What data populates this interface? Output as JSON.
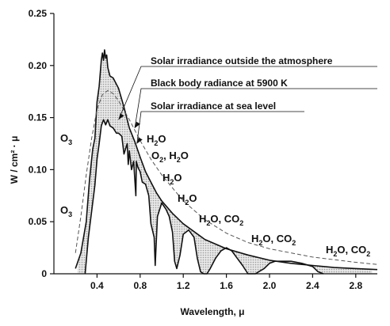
{
  "chart_data": {
    "type": "line",
    "title": "",
    "xlabel": "Wavelength, μ",
    "ylabel": "W / cm² · μ",
    "xlim": [
      0,
      3.0
    ],
    "ylim": [
      0,
      0.25
    ],
    "xticks": [
      0.4,
      0.8,
      1.2,
      1.6,
      2.0,
      2.4,
      2.8
    ],
    "xtick_labels": [
      "0.4",
      "0.8",
      "1.2",
      "1.6",
      "2.0",
      "2.4",
      "2.8"
    ],
    "yticks": [
      0,
      0.05,
      0.1,
      0.15,
      0.2,
      0.25
    ],
    "ytick_labels": [
      "0",
      "0.05",
      "0.10",
      "0.15",
      "0.20",
      "0.25"
    ],
    "grid": false,
    "legend_position": "top-right",
    "series": [
      {
        "name": "Solar irradiance outside the atmosphere",
        "style": "solid",
        "x": [
          0.2,
          0.25,
          0.3,
          0.33,
          0.36,
          0.38,
          0.4,
          0.42,
          0.44,
          0.45,
          0.46,
          0.47,
          0.48,
          0.49,
          0.5,
          0.52,
          0.55,
          0.6,
          0.65,
          0.7,
          0.75,
          0.8,
          0.85,
          0.9,
          0.95,
          1.0,
          1.1,
          1.2,
          1.4,
          1.6,
          1.8,
          2.0,
          2.2,
          2.4,
          2.6,
          2.8,
          3.0
        ],
        "y": [
          0.005,
          0.02,
          0.05,
          0.09,
          0.12,
          0.13,
          0.165,
          0.18,
          0.205,
          0.212,
          0.205,
          0.215,
          0.207,
          0.21,
          0.198,
          0.19,
          0.188,
          0.178,
          0.16,
          0.14,
          0.127,
          0.112,
          0.098,
          0.088,
          0.078,
          0.07,
          0.058,
          0.048,
          0.033,
          0.024,
          0.018,
          0.013,
          0.01,
          0.008,
          0.006,
          0.005,
          0.004
        ]
      },
      {
        "name": "Black body radiance at 5900 K",
        "style": "dashed",
        "x": [
          0.2,
          0.25,
          0.3,
          0.35,
          0.4,
          0.45,
          0.5,
          0.55,
          0.6,
          0.7,
          0.8,
          0.9,
          1.0,
          1.2,
          1.4,
          1.6,
          1.8,
          2.0,
          2.4,
          2.8,
          3.0
        ],
        "y": [
          0.02,
          0.055,
          0.095,
          0.13,
          0.158,
          0.172,
          0.176,
          0.173,
          0.166,
          0.148,
          0.128,
          0.11,
          0.095,
          0.07,
          0.052,
          0.039,
          0.03,
          0.024,
          0.016,
          0.011,
          0.009
        ]
      },
      {
        "name": "Solar irradiance at sea level",
        "style": "solid",
        "x": [
          0.29,
          0.3,
          0.32,
          0.35,
          0.38,
          0.4,
          0.42,
          0.44,
          0.46,
          0.48,
          0.5,
          0.52,
          0.55,
          0.58,
          0.6,
          0.63,
          0.65,
          0.68,
          0.69,
          0.7,
          0.72,
          0.74,
          0.76,
          0.765,
          0.78,
          0.8,
          0.82,
          0.85,
          0.88,
          0.9,
          0.93,
          0.94,
          0.96,
          1.0,
          1.04,
          1.07,
          1.1,
          1.12,
          1.14,
          1.17,
          1.2,
          1.25,
          1.3,
          1.33,
          1.36,
          1.39,
          1.42,
          1.45,
          1.5,
          1.55,
          1.6,
          1.65,
          1.7,
          1.75,
          1.8,
          1.83,
          1.87,
          1.9,
          1.95,
          2.0,
          2.05,
          2.1,
          2.2,
          2.3,
          2.4,
          2.45,
          2.5
        ],
        "y": [
          0.0,
          0.012,
          0.035,
          0.06,
          0.085,
          0.11,
          0.125,
          0.142,
          0.148,
          0.143,
          0.148,
          0.142,
          0.14,
          0.135,
          0.135,
          0.132,
          0.115,
          0.125,
          0.105,
          0.118,
          0.1,
          0.108,
          0.075,
          0.108,
          0.102,
          0.098,
          0.088,
          0.086,
          0.075,
          0.048,
          0.035,
          0.008,
          0.055,
          0.068,
          0.062,
          0.055,
          0.04,
          0.012,
          0.005,
          0.018,
          0.038,
          0.042,
          0.035,
          0.015,
          0.002,
          0.0,
          0.0,
          0.005,
          0.015,
          0.022,
          0.025,
          0.022,
          0.015,
          0.008,
          0.0,
          0.0,
          0.0,
          0.002,
          0.005,
          0.01,
          0.012,
          0.012,
          0.012,
          0.01,
          0.007,
          0.002,
          0.0
        ]
      }
    ],
    "annotations": [
      {
        "base": "O",
        "sub": "3",
        "rest": ""
      },
      {
        "base": "H",
        "sub": "2",
        "rest": "O"
      },
      {
        "base": "O",
        "sub": "2",
        "rest": ", H",
        "sub2": "2",
        "rest2": "O"
      },
      {
        "base": "H",
        "sub": "2",
        "rest": "O"
      },
      {
        "base": "H",
        "sub": "2",
        "rest": "O"
      },
      {
        "base": "O",
        "sub": "3",
        "rest": ""
      },
      {
        "base": "H",
        "sub": "2",
        "rest": "O, CO",
        "sub2": "2",
        "rest2": ""
      },
      {
        "base": "H",
        "sub": "2",
        "rest": "O, CO",
        "sub2": "2",
        "rest2": ""
      },
      {
        "base": "H",
        "sub": "2",
        "rest": "O, CO",
        "sub2": "2",
        "rest2": ""
      }
    ]
  }
}
